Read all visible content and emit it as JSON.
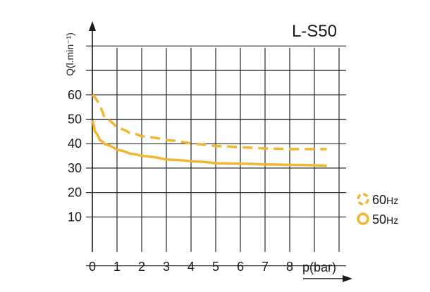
{
  "chart_data": {
    "type": "line",
    "title": "L-S50",
    "xlabel": "p(bar)",
    "ylabel": "Q(l.min⁻¹)",
    "x_ticks": [
      "0",
      "1",
      "2",
      "3",
      "4",
      "5",
      "6",
      "7",
      "8"
    ],
    "y_ticks": [
      "10",
      "20",
      "30",
      "40",
      "50",
      "60"
    ],
    "xlim": [
      0,
      10.5
    ],
    "ylim": [
      -10,
      90
    ],
    "grid": true,
    "legend_placement": "right",
    "series": [
      {
        "name": "60Hz",
        "style": "dashed",
        "color": "#F2B632",
        "x": [
          0,
          0.5,
          1,
          1.5,
          2,
          3,
          4,
          5,
          6,
          7,
          8,
          9.5
        ],
        "y": [
          60,
          50.5,
          46.5,
          44.5,
          43,
          41.5,
          40,
          39,
          38.5,
          38,
          37.8,
          37.8
        ]
      },
      {
        "name": "50Hz",
        "style": "solid",
        "color": "#F2B632",
        "x": [
          0,
          0.1,
          0.3,
          0.5,
          1,
          1.5,
          2,
          3,
          4,
          5,
          6,
          7,
          8,
          9.5
        ],
        "y": [
          49.5,
          45,
          41.5,
          39.8,
          37.5,
          36,
          35,
          33.5,
          32.8,
          32,
          31.8,
          31.5,
          31.3,
          31
        ]
      }
    ],
    "legend": [
      {
        "label": "60",
        "unit": "Hz",
        "style": "dashed"
      },
      {
        "label": "50",
        "unit": "Hz",
        "style": "solid"
      }
    ]
  }
}
